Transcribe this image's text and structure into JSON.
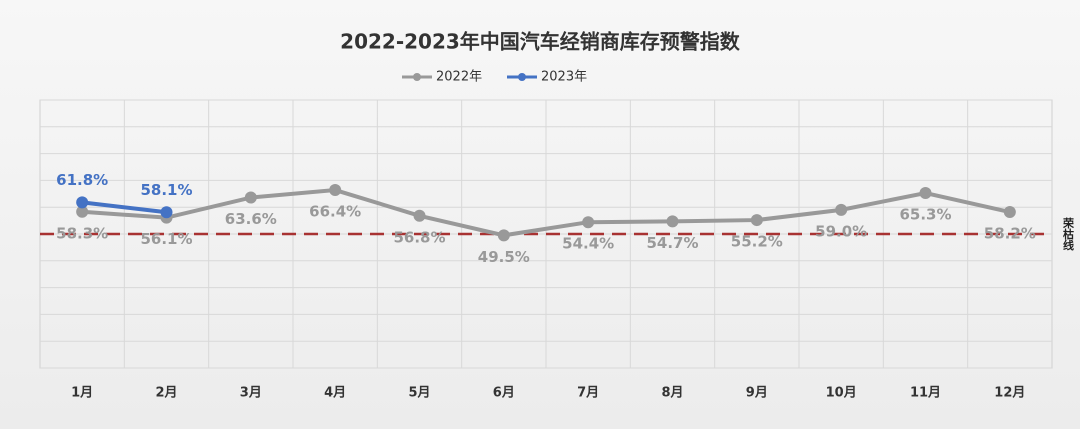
{
  "chart_data": {
    "type": "line",
    "title": "2022-2023年中国汽车经销商库存预警指数",
    "categories": [
      "1月",
      "2月",
      "3月",
      "4月",
      "5月",
      "6月",
      "7月",
      "8月",
      "9月",
      "10月",
      "11月",
      "12月"
    ],
    "series": [
      {
        "name": "2022年",
        "color": "#999999",
        "values": [
          58.3,
          56.1,
          63.6,
          66.4,
          56.8,
          49.5,
          54.4,
          54.7,
          55.2,
          59.0,
          65.3,
          58.2
        ],
        "value_labels": [
          "58.3%",
          "56.1%",
          "63.6%",
          "66.4%",
          "56.8%",
          "49.5%",
          "54.4%",
          "54.7%",
          "55.2%",
          "59.0%",
          "65.3%",
          "58.2%"
        ]
      },
      {
        "name": "2023年",
        "color": "#4472c4",
        "values": [
          61.8,
          58.1,
          null,
          null,
          null,
          null,
          null,
          null,
          null,
          null,
          null,
          null
        ],
        "value_labels": [
          "61.8%",
          "58.1%",
          null,
          null,
          null,
          null,
          null,
          null,
          null,
          null,
          null,
          null
        ]
      }
    ],
    "reference_line": {
      "value": 50,
      "label": "荣枯线",
      "color": "#a83232"
    },
    "ylim": [
      0,
      100
    ],
    "yticks": [
      0,
      10,
      20,
      30,
      40,
      50,
      60,
      70,
      80,
      90,
      100
    ],
    "grid": true,
    "legend": "top"
  }
}
